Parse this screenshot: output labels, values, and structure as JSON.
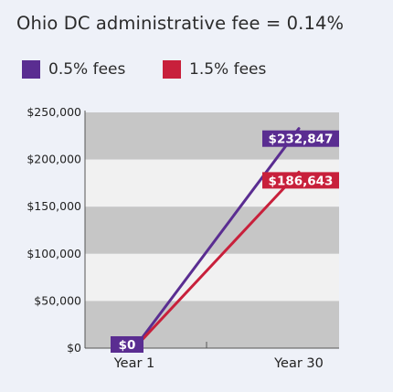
{
  "title": "Ohio DC administrative fee = 0.14%",
  "colors": {
    "background": "#eef1f8",
    "band_dark": "#c6c6c6",
    "band_light": "#f1f1f1",
    "purple": "#5a2d91",
    "red": "#c8203b"
  },
  "chart_data": {
    "type": "line",
    "categories": [
      "Year 1",
      "Year 30"
    ],
    "ylim": [
      0,
      250000
    ],
    "yticks": [
      0,
      50000,
      100000,
      150000,
      200000,
      250000
    ],
    "ytick_labels": [
      "$0",
      "$50,000",
      "$100,000",
      "$150,000",
      "$200,000",
      "$250,000"
    ],
    "legend_position": "top",
    "grid": "alternating horizontal bands",
    "series": [
      {
        "name": "0.5% fees",
        "color": "#5a2d91",
        "values": [
          0,
          232847
        ],
        "labels": [
          "$0",
          "$232,847"
        ]
      },
      {
        "name": "1.5% fees",
        "color": "#c8203b",
        "values": [
          0,
          186643
        ],
        "labels": [
          "",
          "$186,643"
        ]
      }
    ]
  }
}
